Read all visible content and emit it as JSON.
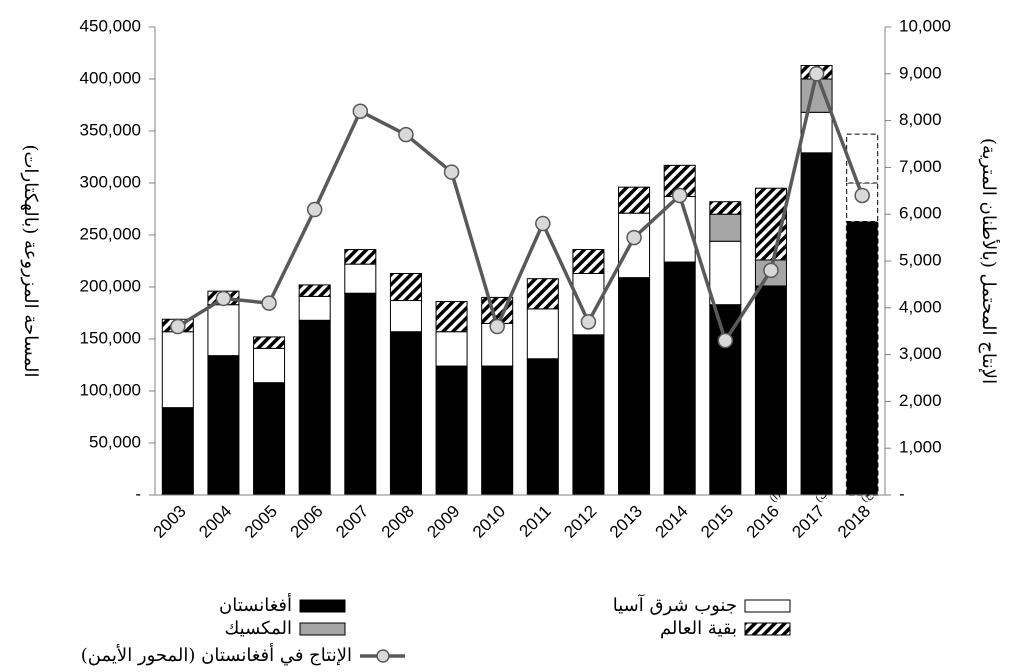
{
  "chart_data": {
    "type": "bar",
    "stacked": true,
    "y_label": "المساحة المزروعة (بالهكتارات)",
    "y2_label": "الإنتاج المحتمل (بالأطنان المترية)",
    "categories": [
      "2003",
      "2004",
      "2005",
      "2006",
      "2007",
      "2008",
      "2009",
      "2010",
      "2011",
      "2012",
      "2013",
      "2014",
      "2015",
      "2016",
      "2017",
      "2018"
    ],
    "category_notes": [
      null,
      null,
      null,
      null,
      null,
      null,
      null,
      null,
      null,
      null,
      null,
      null,
      null,
      "(أ)",
      "(ب)",
      "(ج)"
    ],
    "estimated_categories": [
      15
    ],
    "series": [
      {
        "name": "أفغانستان",
        "color": "#000000",
        "values": [
          84000,
          134000,
          108000,
          168000,
          194000,
          157000,
          124000,
          124000,
          131000,
          154000,
          209000,
          224000,
          183000,
          201000,
          329000,
          263000
        ]
      },
      {
        "name": "جنوب شرق آسيا",
        "color": "#ffffff",
        "values": [
          73000,
          49000,
          33000,
          23000,
          28000,
          30000,
          33000,
          41000,
          48000,
          59000,
          62000,
          63000,
          61000,
          0,
          39000,
          37000
        ]
      },
      {
        "name": "المكسيك",
        "color": "#a6a6a6",
        "values": [
          0,
          0,
          0,
          0,
          0,
          0,
          0,
          0,
          0,
          0,
          0,
          0,
          26000,
          25000,
          32000,
          0
        ]
      },
      {
        "name": "بقية العالم",
        "color": "#000000",
        "pattern": "hatch",
        "values": [
          12000,
          13000,
          11000,
          11000,
          14000,
          26000,
          29000,
          25000,
          29000,
          23000,
          25000,
          30000,
          12000,
          69000,
          13000,
          47000
        ]
      },
      {
        "name": "الإنتاج في أفغانستان (المحور الأيمن)",
        "type": "line",
        "axis": "y2",
        "color": "#595959",
        "marker_color": "#d9d9d9",
        "values": [
          3600,
          4200,
          4100,
          6100,
          8200,
          7700,
          6900,
          3600,
          5800,
          3700,
          5500,
          6400,
          3300,
          4800,
          9000,
          6400
        ]
      }
    ],
    "ylim": [
      0,
      450000
    ],
    "yticks": [
      {
        "value": 0,
        "label": "-"
      },
      {
        "value": 50000,
        "label": "50,000"
      },
      {
        "value": 100000,
        "label": "100,000"
      },
      {
        "value": 150000,
        "label": "150,000"
      },
      {
        "value": 200000,
        "label": "200,000"
      },
      {
        "value": 250000,
        "label": "250,000"
      },
      {
        "value": 300000,
        "label": "300,000"
      },
      {
        "value": 350000,
        "label": "350,000"
      },
      {
        "value": 400000,
        "label": "400,000"
      },
      {
        "value": 450000,
        "label": "450,000"
      }
    ],
    "y2lim": [
      0,
      10000
    ],
    "y2ticks": [
      {
        "value": 0,
        "label": "-"
      },
      {
        "value": 1000,
        "label": "1,000"
      },
      {
        "value": 2000,
        "label": "2,000"
      },
      {
        "value": 3000,
        "label": "3,000"
      },
      {
        "value": 4000,
        "label": "4,000"
      },
      {
        "value": 5000,
        "label": "5,000"
      },
      {
        "value": 6000,
        "label": "6,000"
      },
      {
        "value": 7000,
        "label": "7,000"
      },
      {
        "value": 8000,
        "label": "8,000"
      },
      {
        "value": 9000,
        "label": "9,000"
      },
      {
        "value": 10000,
        "label": "10,000"
      }
    ],
    "grid": false
  }
}
